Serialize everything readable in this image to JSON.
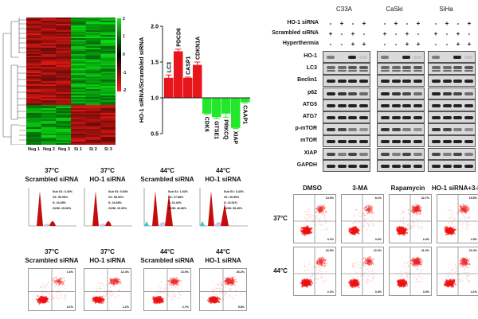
{
  "heatmap": {
    "columns": [
      "Neg 1",
      "Neg 2",
      "Neg 3",
      "Si 1",
      "Si 2",
      "Si 3"
    ],
    "scale_ticks": [
      "2",
      "1",
      "0",
      "-1",
      "-2"
    ],
    "colors": {
      "high": "#21e021",
      "mid": "#000000",
      "low": "#ff1f1f"
    }
  },
  "chart_data": {
    "type": "bar",
    "title": "",
    "xlabel": "",
    "ylabel": "HO-1 siRNA/Scrambled siRNA",
    "ylim": [
      0.5,
      2.0
    ],
    "yticks": [
      "0.5",
      "1.0",
      "1.5",
      "2.0"
    ],
    "baseline": 1.0,
    "categories": [
      "LC3",
      "PDCD6",
      "CASP1",
      "CDKN1A",
      "CDK6",
      "GTSE1",
      "PRKCQ",
      "XIAP",
      "CAAP1"
    ],
    "values": [
      1.28,
      1.65,
      1.28,
      1.46,
      0.78,
      0.73,
      0.78,
      0.58,
      0.94
    ],
    "errors": [
      0.04,
      0.03,
      0.01,
      0.04,
      0.01,
      0.02,
      0.05,
      0.01,
      0.01
    ],
    "colors": {
      "up": "#e8161b",
      "down": "#22e82a"
    }
  },
  "western_blot": {
    "cell_lines": [
      "C33A",
      "CaSki",
      "SiHa"
    ],
    "conditions": [
      {
        "label": "HO-1 siRNA",
        "signs": [
          "-",
          "+",
          "-",
          "+"
        ]
      },
      {
        "label": "Scrambled siRNA",
        "signs": [
          "+",
          "-",
          "+",
          "-"
        ]
      },
      {
        "label": "Hyperthermia",
        "signs": [
          "-",
          "-",
          "+",
          "+"
        ]
      }
    ],
    "proteins": [
      "HO-1",
      "LC3",
      "Beclin1",
      "p62",
      "ATG5",
      "ATG7",
      "p-mTOR",
      "mTOR",
      "XIAP",
      "GAPDH"
    ]
  },
  "cell_cycle": {
    "panels": [
      {
        "temp": "37°C",
        "group": "Scrambled siRNA",
        "readout": [
          "Sub G1: 0.40%",
          "G1: 59.08%",
          "S: 24.45%",
          "G2/M: 15.68%"
        ]
      },
      {
        "temp": "37°C",
        "group": "HO-1 siRNA",
        "readout": [
          "Sub G1: 0.54%",
          "G1: 59.52%",
          "S: 24.68%",
          "G2/M: 15.39%"
        ]
      },
      {
        "temp": "44°C",
        "group": "Scrambled siRNA",
        "readout": [
          "Sub G1: 1.02%",
          "G1: 27.88%",
          "S: 22.44%",
          "G2/M: 46.86%"
        ]
      },
      {
        "temp": "44°C",
        "group": "HO-1 siRNA",
        "readout": [
          "Sub G1: 3.42%",
          "G1: 30.50%",
          "S: 24.01%",
          "G2/M: 39.49%"
        ]
      }
    ]
  },
  "apoptosis_left": {
    "panels": [
      {
        "temp": "37°C",
        "group": "Scrambled siRNA",
        "upper": "1.6%",
        "lower": "3.1%"
      },
      {
        "temp": "37°C",
        "group": "HO-1 siRNA",
        "upper": "12.4%",
        "lower": "1.2%"
      },
      {
        "temp": "44°C",
        "group": "Scrambled siRNA",
        "upper": "13.5%",
        "lower": "2.7%"
      },
      {
        "temp": "44°C",
        "group": "HO-1 siRNA",
        "upper": "26.2%",
        "lower": "5.8%"
      }
    ]
  },
  "apoptosis_right": {
    "columns": [
      "DMSO",
      "3-MA",
      "Rapamycin",
      "HO-1 siRNA+3-MA"
    ],
    "rows": [
      {
        "temp": "37°C",
        "upper": [
          "14.9%",
          "8.1%",
          "32.7%",
          "15.5%"
        ],
        "lower": [
          "3.1%",
          "3.4%",
          "2.4%",
          "2.5%"
        ]
      },
      {
        "temp": "44°C",
        "upper": [
          "16.0%",
          "12.2%",
          "41.2%",
          "22.4%"
        ],
        "lower": [
          "2.1%",
          "3.4%",
          "3.4%",
          "4.1%"
        ]
      }
    ]
  }
}
